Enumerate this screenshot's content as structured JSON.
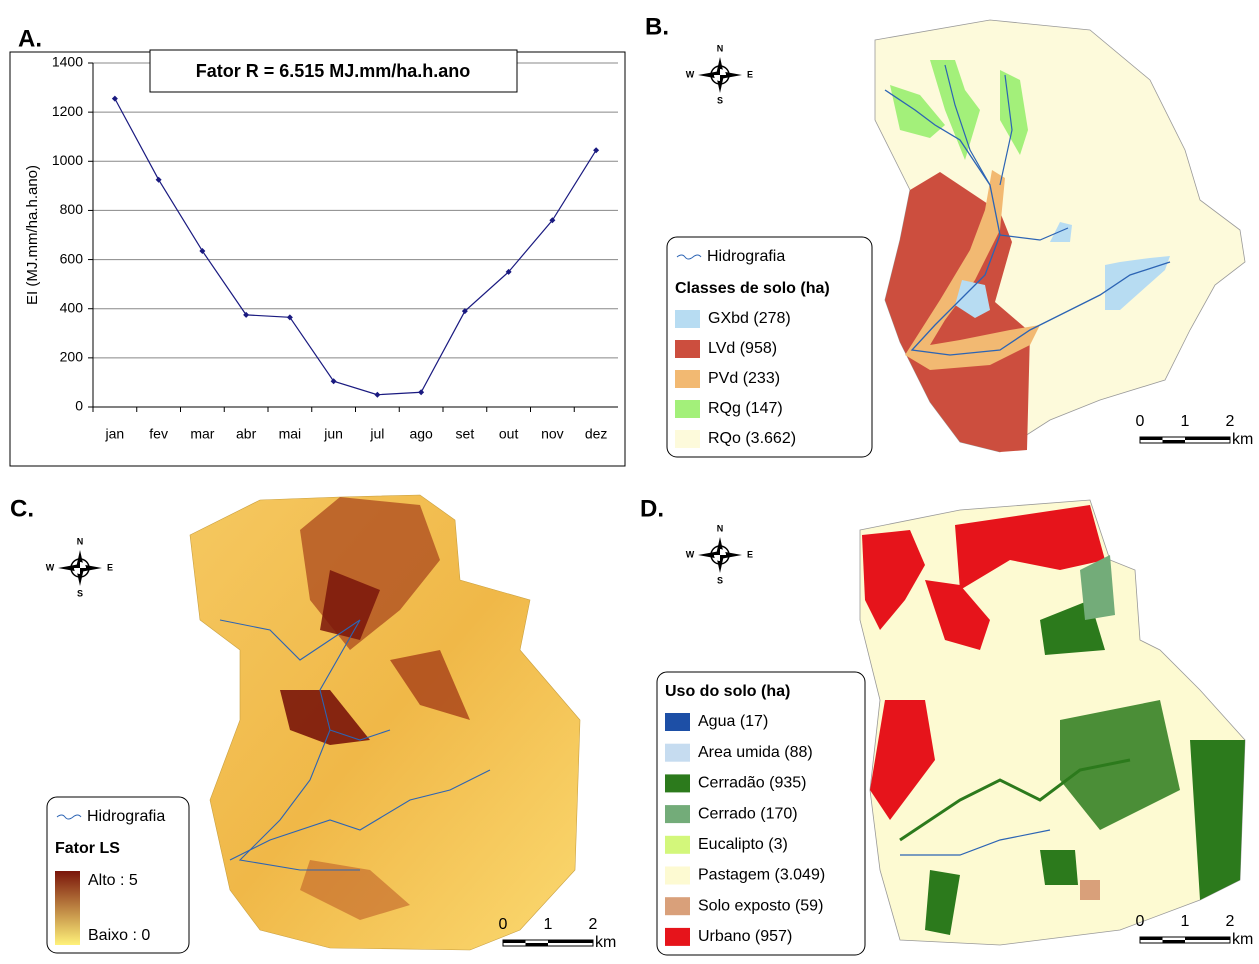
{
  "chart_data": {
    "type": "line",
    "label": "A.",
    "annotation": "Fator R = 6.515 MJ.mm/ha.h.ano",
    "ylabel": "EI (MJ.mm/ha.h.ano)",
    "categories": [
      "jan",
      "fev",
      "mar",
      "abr",
      "mai",
      "jun",
      "jul",
      "ago",
      "set",
      "out",
      "nov",
      "dez"
    ],
    "values": [
      1255,
      925,
      635,
      375,
      365,
      105,
      50,
      60,
      390,
      550,
      760,
      1045
    ],
    "color": "#1a1a80",
    "ylim": [
      0,
      1400
    ],
    "yticks": [
      0,
      200,
      400,
      600,
      800,
      1000,
      1200,
      1400
    ],
    "grid": true
  },
  "panels": [
    {
      "label": "B.",
      "compass": [
        "N",
        "W",
        "E",
        "S"
      ],
      "line_item": "Hidrografia",
      "legend_title": "Classes de solo (ha)",
      "legend": [
        {
          "name": "GXbd (278)",
          "color": "#b7dcf2"
        },
        {
          "name": "LVd (958)",
          "color": "#cc4e3e"
        },
        {
          "name": "PVd (233)",
          "color": "#f2b972"
        },
        {
          "name": "RQg (147)",
          "color": "#a3f07a"
        },
        {
          "name": "RQo (3.662)",
          "color": "#fdfadb"
        }
      ],
      "scale": [
        "0",
        "1",
        "2",
        "km"
      ]
    },
    {
      "label": "C.",
      "compass": [
        "N",
        "W",
        "E",
        "S"
      ],
      "line_item": "Hidrografia",
      "legend_title": "Fator LS",
      "gradient": [
        {
          "label": "Alto : 5",
          "color": "#7a150a"
        },
        {
          "label": "Baixo : 0",
          "color": "#fff27a"
        }
      ],
      "scale": [
        "0",
        "1",
        "2",
        "km"
      ]
    },
    {
      "label": "D.",
      "compass": [
        "N",
        "W",
        "E",
        "S"
      ],
      "legend_title": "Uso do solo (ha)",
      "legend": [
        {
          "name": "Agua (17)",
          "color": "#1d4fa6"
        },
        {
          "name": "Area umida (88)",
          "color": "#c6dcf0"
        },
        {
          "name": "Cerradão (935)",
          "color": "#2c7a1c"
        },
        {
          "name": "Cerrado (170)",
          "color": "#73ac79"
        },
        {
          "name": "Eucalipto (3)",
          "color": "#d3f77b"
        },
        {
          "name": "Pastagem (3.049)",
          "color": "#fdfad2"
        },
        {
          "name": "Solo exposto (59)",
          "color": "#d9a07a"
        },
        {
          "name": "Urbano (957)",
          "color": "#e6141b"
        }
      ],
      "scale": [
        "0",
        "1",
        "2",
        "km"
      ]
    }
  ]
}
